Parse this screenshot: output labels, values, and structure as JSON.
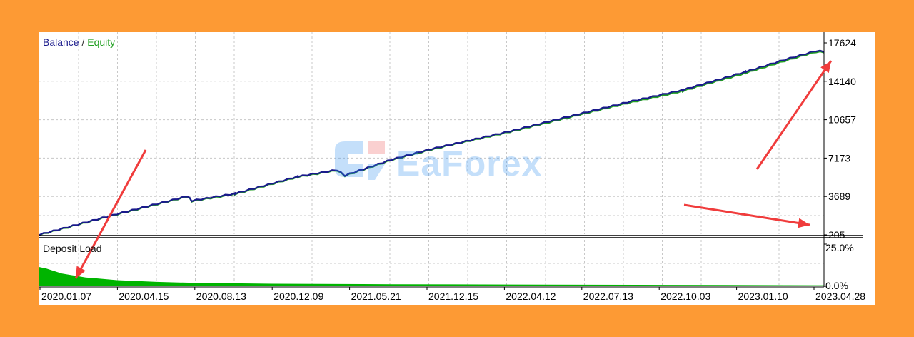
{
  "chart_data": [
    {
      "type": "line",
      "title": "",
      "legend": [
        "Balance",
        "Equity"
      ],
      "legend_separator": "/",
      "legend_placement": "top-left",
      "ylim": [
        205,
        17624
      ],
      "y_ticks": [
        "17624",
        "14140",
        "10657",
        "7173",
        "3689",
        "205"
      ],
      "x_ticks": [
        "2020.01.07",
        "2020.04.15",
        "2020.08.13",
        "2020.12.09",
        "2021.05.21",
        "2021.12.15",
        "2022.04.12",
        "2022.07.13",
        "2022.10.03",
        "2023.01.10",
        "2023.04.28"
      ],
      "grid": true,
      "series": [
        {
          "name": "Balance",
          "color": "#1a1a8c",
          "points": [
            [
              0,
              205
            ],
            [
              0.1,
              2100
            ],
            [
              0.19,
              3720
            ],
            [
              0.195,
              3300
            ],
            [
              0.25,
              3950
            ],
            [
              0.33,
              5500
            ],
            [
              0.38,
              6100
            ],
            [
              0.39,
              5600
            ],
            [
              0.45,
              7050
            ],
            [
              0.5,
              8000
            ],
            [
              0.6,
              9600
            ],
            [
              0.65,
              10500
            ],
            [
              0.75,
              12250
            ],
            [
              0.82,
              13350
            ],
            [
              0.9,
              15000
            ],
            [
              0.95,
              16100
            ],
            [
              0.99,
              16900
            ],
            [
              1.0,
              16850
            ]
          ]
        },
        {
          "name": "Equity",
          "color": "#22a022",
          "points": [
            [
              0,
              180
            ],
            [
              0.1,
              2050
            ],
            [
              0.19,
              3680
            ],
            [
              0.195,
              3250
            ],
            [
              0.25,
              3900
            ],
            [
              0.33,
              5450
            ],
            [
              0.38,
              6050
            ],
            [
              0.39,
              5550
            ],
            [
              0.45,
              7000
            ],
            [
              0.5,
              7950
            ],
            [
              0.6,
              9550
            ],
            [
              0.65,
              10420
            ],
            [
              0.75,
              12150
            ],
            [
              0.82,
              13250
            ],
            [
              0.9,
              14880
            ],
            [
              0.95,
              15980
            ],
            [
              0.99,
              16800
            ],
            [
              1.0,
              16780
            ]
          ]
        }
      ]
    },
    {
      "type": "area",
      "title": "Deposit Load",
      "ylim": [
        0,
        25
      ],
      "y_ticks": [
        "25.0%",
        "0.0%"
      ],
      "grid": true,
      "series": [
        {
          "name": "Deposit Load",
          "color": "#00b400",
          "points": [
            [
              0,
              11.5
            ],
            [
              0.01,
              10.5
            ],
            [
              0.03,
              7.5
            ],
            [
              0.06,
              5.2
            ],
            [
              0.1,
              3.6
            ],
            [
              0.15,
              2.6
            ],
            [
              0.2,
              2.0
            ],
            [
              0.3,
              1.5
            ],
            [
              0.45,
              1.2
            ],
            [
              0.6,
              1.0
            ],
            [
              0.8,
              0.8
            ],
            [
              1.0,
              0.6
            ]
          ]
        }
      ]
    }
  ],
  "watermark": {
    "text": "EaForex"
  },
  "colors": {
    "background": "#fd9a34",
    "panel": "#ffffff",
    "grid": "#c8c8c8",
    "annotation_arrow": "#f03c3c"
  }
}
